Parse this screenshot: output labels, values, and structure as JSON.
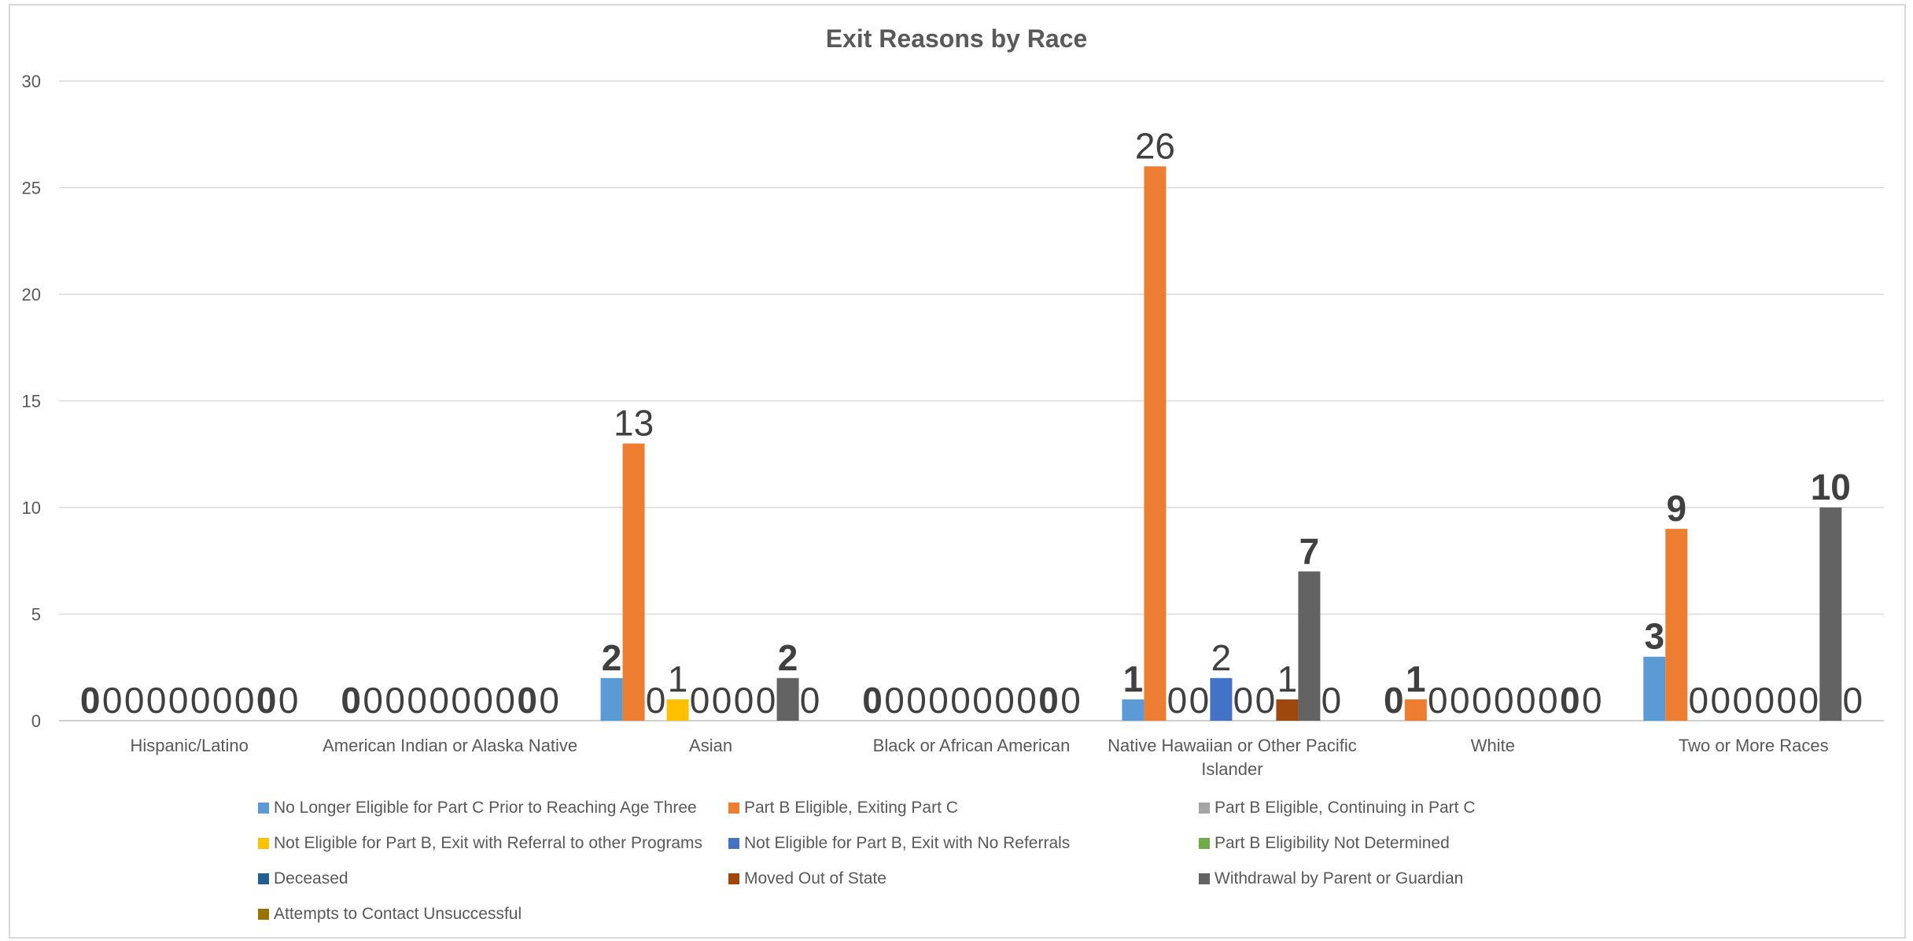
{
  "chart_data": {
    "type": "bar",
    "title": "Exit Reasons by Race",
    "categories": [
      "Hispanic/Latino",
      "American Indian or Alaska Native",
      "Asian",
      "Black or African American",
      "Native Hawaiian or Other Pacific Islander",
      "White",
      "Two or More Races"
    ],
    "category_lines": [
      [
        "Hispanic/Latino"
      ],
      [
        "American Indian or Alaska Native"
      ],
      [
        "Asian"
      ],
      [
        "Black or African American"
      ],
      [
        "Native Hawaiian or Other Pacific",
        "Islander"
      ],
      [
        "White"
      ],
      [
        "Two or More Races"
      ]
    ],
    "ylim": [
      0,
      30
    ],
    "yticks": [
      0,
      5,
      10,
      15,
      20,
      25,
      30
    ],
    "grid": true,
    "legend_position": "bottom",
    "series": [
      {
        "name": "No Longer Eligible for Part C Prior to Reaching Age Three",
        "color": "#5B9BD5",
        "values": [
          0,
          0,
          2,
          0,
          1,
          0,
          3
        ]
      },
      {
        "name": "Part B Eligible, Exiting Part C",
        "color": "#ED7D31",
        "values": [
          0,
          0,
          13,
          0,
          26,
          1,
          9
        ]
      },
      {
        "name": "Part B Eligible, Continuing in Part C",
        "color": "#A5A5A5",
        "values": [
          0,
          0,
          0,
          0,
          0,
          0,
          0
        ]
      },
      {
        "name": "Not Eligible for Part B, Exit with Referral to other Programs",
        "color": "#FFC000",
        "values": [
          0,
          0,
          1,
          0,
          0,
          0,
          0
        ]
      },
      {
        "name": "Not Eligible for Part B, Exit with No Referrals",
        "color": "#4472C4",
        "values": [
          0,
          0,
          0,
          0,
          2,
          0,
          0
        ]
      },
      {
        "name": "Part B Eligibility Not Determined",
        "color": "#70AD47",
        "values": [
          0,
          0,
          0,
          0,
          0,
          0,
          0
        ]
      },
      {
        "name": "Deceased",
        "color": "#255E91",
        "values": [
          0,
          0,
          0,
          0,
          0,
          0,
          0
        ]
      },
      {
        "name": "Moved Out of State",
        "color": "#9E480E",
        "values": [
          0,
          0,
          0,
          0,
          1,
          0,
          0
        ]
      },
      {
        "name": "Withdrawal by Parent or Guardian",
        "color": "#636363",
        "values": [
          0,
          0,
          2,
          0,
          7,
          0,
          10
        ]
      },
      {
        "name": "Attempts to Contact Unsuccessful",
        "color": "#997300",
        "values": [
          0,
          0,
          0,
          0,
          0,
          0,
          0
        ]
      }
    ],
    "label_styles": {
      "bold_series": [
        0,
        8
      ],
      "bold_points": [
        [
          1,
          6
        ],
        [
          1,
          5
        ]
      ]
    }
  }
}
